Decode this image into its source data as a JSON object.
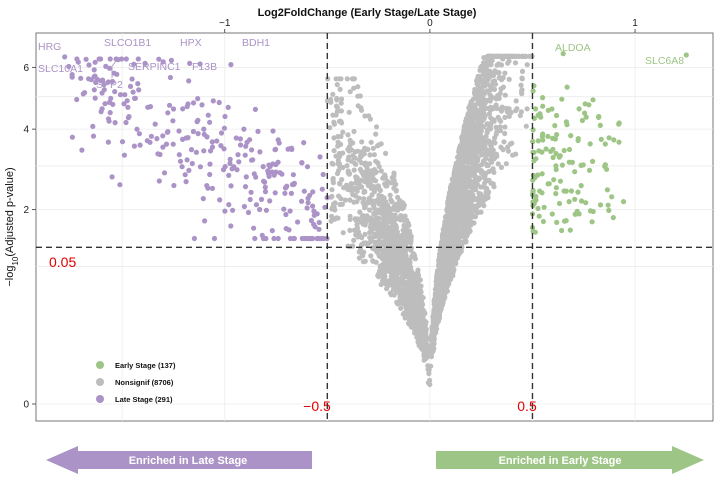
{
  "chart_data": {
    "type": "scatter",
    "title": "Log2FoldChange (Early Stage/Late Stage)",
    "xlabel": "Log2FoldChange (Early Stage/Late Stage)",
    "ylabel": "-log10(Adjusted p-value)",
    "ylabel_main": "−log",
    "ylabel_sub": "10",
    "ylabel_tail": "(Adjusted p-value)",
    "xlim": [
      -1.92,
      1.38
    ],
    "y_scale": "sqrt",
    "ylim": [
      0,
      6.5
    ],
    "x_ticks": [
      -1,
      0,
      1
    ],
    "x_tick_labels": [
      "−1",
      "0",
      "1"
    ],
    "y_ticks": [
      0,
      2,
      4,
      6
    ],
    "y_tick_labels": [
      "0",
      "2",
      "4",
      "6"
    ],
    "x_axis_position": "top",
    "grid": true,
    "thresholds": {
      "fold_change": [
        -0.5,
        0.5
      ],
      "fold_change_labels": [
        "−0.5",
        "0.5"
      ],
      "pvalue": 0.05,
      "pvalue_label": "0.05",
      "pvalue_y": 1.3
    },
    "series": [
      {
        "name": "Early Stage (137)",
        "color": "#9dc586",
        "count": 137
      },
      {
        "name": "Nonsignif (8706)",
        "color": "#bdbdbd",
        "count": 8706
      },
      {
        "name": "Late Stage (291)",
        "color": "#ab93c7",
        "count": 291
      }
    ],
    "legend_position": "bottom-left",
    "annotations": [
      {
        "gene": "HRG",
        "x": -1.78,
        "y": 6.38,
        "group": "late"
      },
      {
        "gene": "SLC10A1",
        "x": -1.76,
        "y": 6.03,
        "group": "late"
      },
      {
        "gene": "SLCO1B1",
        "x": -1.52,
        "y": 6.28,
        "group": "late"
      },
      {
        "gene": "SPP2",
        "x": -1.48,
        "y": 6.3,
        "group": "late"
      },
      {
        "gene": "HPX",
        "x": -1.26,
        "y": 6.25,
        "group": "late"
      },
      {
        "gene": "SERPINC1",
        "x": -1.3,
        "y": 6.2,
        "group": "late"
      },
      {
        "gene": "F13B",
        "x": -1.12,
        "y": 6.12,
        "group": "late"
      },
      {
        "gene": "BDH1",
        "x": -0.97,
        "y": 6.1,
        "group": "late"
      },
      {
        "gene": "ALDOA",
        "x": 0.65,
        "y": 6.5,
        "group": "early"
      },
      {
        "gene": "SLC6A8",
        "x": 1.25,
        "y": 6.45,
        "group": "early"
      }
    ]
  },
  "arrows": {
    "left": {
      "label": "Enriched in Late Stage",
      "color": "#ab93c7"
    },
    "right": {
      "label": "Enriched in Early Stage",
      "color": "#9dc586"
    }
  }
}
